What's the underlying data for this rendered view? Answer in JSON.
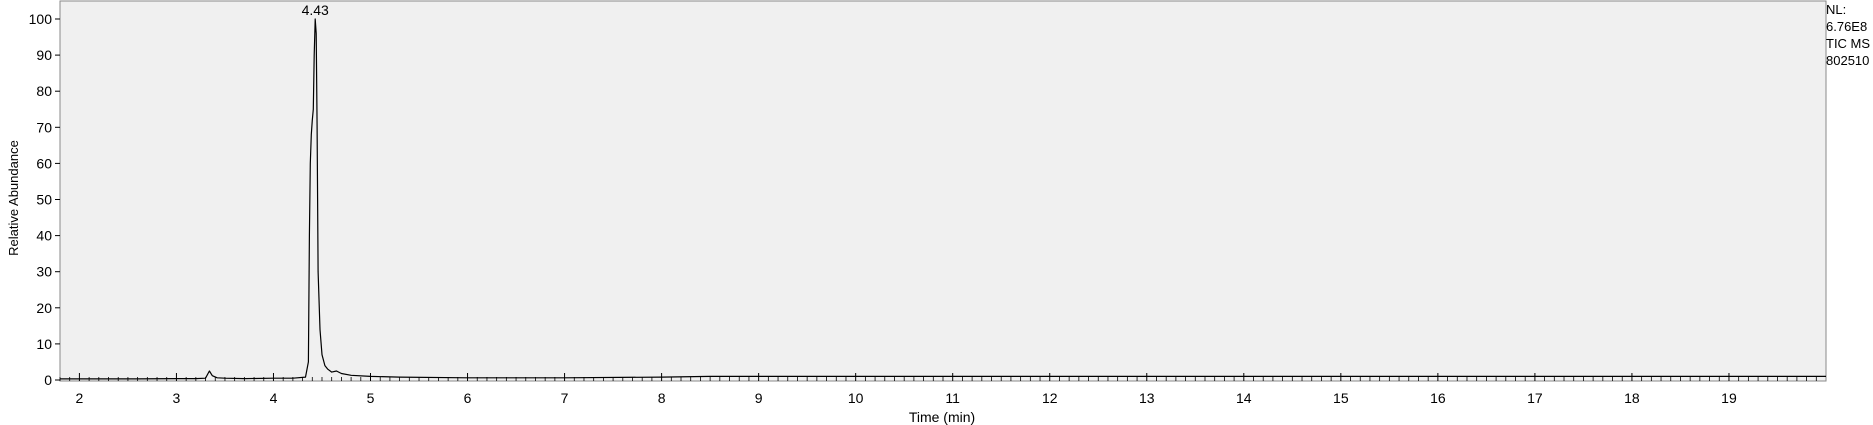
{
  "chart_data": {
    "type": "line",
    "title": "",
    "xlabel": "Time (min)",
    "ylabel": "Relative Abundance",
    "xlim": [
      1.8,
      20.0
    ],
    "ylim": [
      0,
      100
    ],
    "x_ticks": [
      2,
      3,
      4,
      5,
      6,
      7,
      8,
      9,
      10,
      11,
      12,
      13,
      14,
      15,
      16,
      17,
      18,
      19
    ],
    "y_ticks": [
      0,
      10,
      20,
      30,
      40,
      50,
      60,
      70,
      80,
      90,
      100
    ],
    "grid": false,
    "series": [
      {
        "x": [
          1.8,
          2.2,
          2.6,
          3.0,
          3.2,
          3.3,
          3.34,
          3.37,
          3.42,
          3.5,
          3.7,
          4.0,
          4.2,
          4.33,
          4.36,
          4.37,
          4.38,
          4.39,
          4.4,
          4.41,
          4.42,
          4.43,
          4.44,
          4.45,
          4.46,
          4.48,
          4.5,
          4.53,
          4.56,
          4.6,
          4.65,
          4.7,
          4.8,
          5.0,
          5.3,
          6.0,
          7.0,
          8.0,
          8.5,
          9.0,
          10.0,
          12.0,
          14.0,
          16.0,
          18.0,
          20.0
        ],
        "y": [
          0.3,
          0.3,
          0.3,
          0.4,
          0.4,
          0.5,
          2.5,
          1.2,
          0.6,
          0.5,
          0.4,
          0.5,
          0.5,
          0.8,
          5,
          40,
          60,
          68,
          72,
          75,
          90,
          100,
          96,
          70,
          30,
          14,
          7,
          4,
          3,
          2.2,
          2.5,
          1.8,
          1.3,
          1.0,
          0.8,
          0.6,
          0.6,
          0.8,
          1.0,
          1.0,
          1.0,
          1.0,
          1.0,
          1.0,
          1.0,
          1.0
        ]
      }
    ],
    "annotations": [
      {
        "text": "4.43",
        "x": 4.43,
        "y": 100
      }
    ]
  },
  "side_info": [
    "NL:",
    "6.76E8",
    "TIC  MS",
    "802510"
  ]
}
